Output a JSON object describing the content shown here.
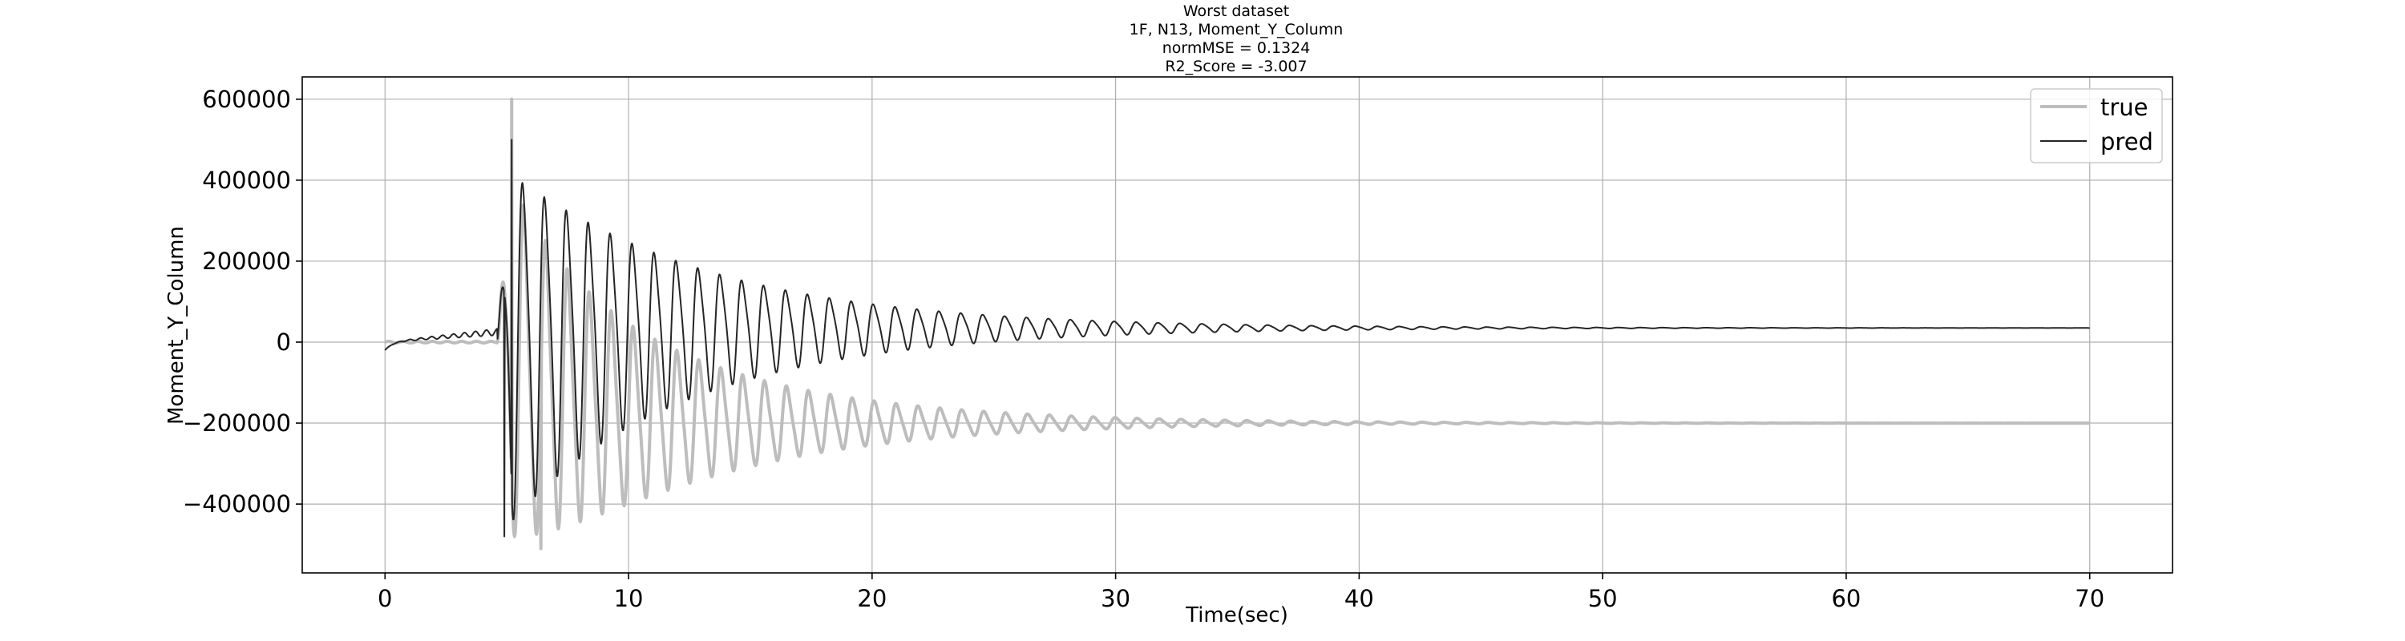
{
  "chart_data": {
    "type": "line",
    "title_lines": [
      "Worst dataset",
      "1F, N13, Moment_Y_Column",
      "normMSE = 0.1324",
      "R2_Score = -3.007"
    ],
    "xlabel": "Time(sec)",
    "ylabel": "Moment_Y_Column",
    "xlim": [
      -3.4,
      73.4
    ],
    "ylim": [
      -570000,
      655000
    ],
    "xticks": [
      0,
      10,
      20,
      30,
      40,
      50,
      60,
      70
    ],
    "yticks": [
      -400000,
      -200000,
      0,
      200000,
      400000,
      600000
    ],
    "ytick_labels": [
      "−400000",
      "−200000",
      "0",
      "200000",
      "400000",
      "600000"
    ],
    "grid": true,
    "legend_position": "top-right",
    "series": [
      {
        "name": "true",
        "color": "#bdbdbd",
        "signal": {
          "start": 0.0,
          "end": 70.0,
          "onset": 4.6,
          "pre_level": 0,
          "final_level": -200000,
          "peak_amp": 450000,
          "decay": 0.14,
          "period": 0.9,
          "note_peak": {
            "x": 5.2,
            "y": 600000
          },
          "note_trough": {
            "x": 6.4,
            "y": -510000
          }
        }
      },
      {
        "name": "pred",
        "color": "#262626",
        "signal": {
          "start": 0.0,
          "end": 70.0,
          "onset": 4.6,
          "pre_level": 25000,
          "final_level": 35000,
          "peak_amp": 440000,
          "decay": 0.13,
          "period": 0.9,
          "note_peak": {
            "x": 5.2,
            "y": 500000
          },
          "note_trough": {
            "x": 4.9,
            "y": -480000
          }
        }
      }
    ]
  }
}
